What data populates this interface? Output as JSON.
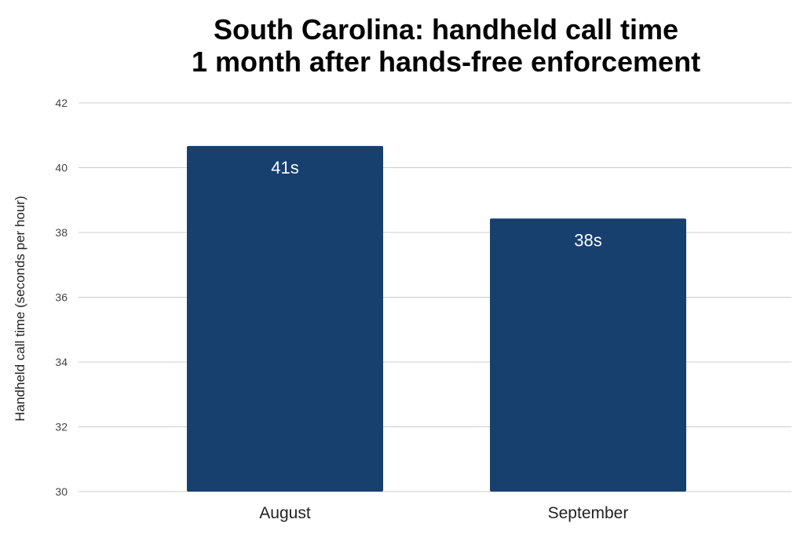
{
  "chart_data": {
    "type": "bar",
    "title_lines": [
      "South Carolina: handheld call time",
      "1 month after hands-free enforcement"
    ],
    "categories": [
      "August",
      "September"
    ],
    "values": [
      40.67,
      38.43
    ],
    "data_labels": [
      "41s",
      "38s"
    ],
    "xlabel": "",
    "ylabel": "Handheld call time (seconds per hour)",
    "ylim": [
      30,
      42
    ],
    "yticks": [
      30,
      32,
      34,
      36,
      38,
      40,
      42
    ],
    "grid": true,
    "legend": "none",
    "bar_color": "#17406f"
  }
}
